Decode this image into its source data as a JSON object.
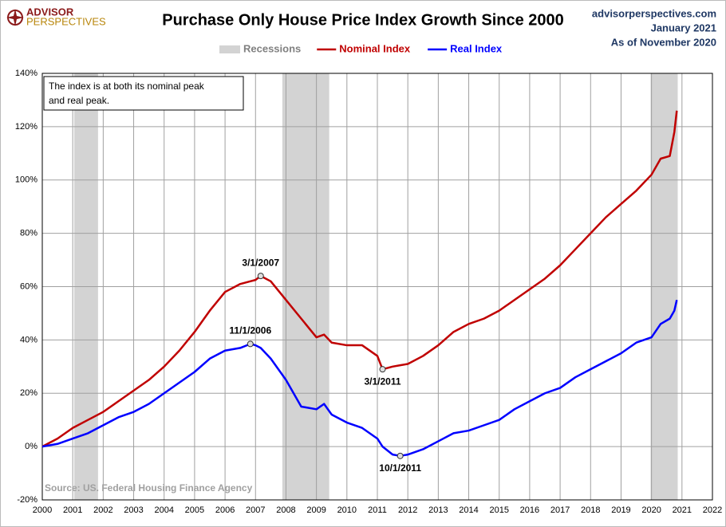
{
  "brand": [
    "ADVISOR",
    "PERSPECTIVES"
  ],
  "site": "advisorperspectives.com",
  "date": "January 2021",
  "as_of": "As of November 2020",
  "chart_data": {
    "type": "line",
    "title": "Purchase Only House Price Index Growth Since 2000",
    "recessions_label": "Recessions",
    "recession_color": "#d3d3d3",
    "recessions": [
      [
        2001.05,
        2001.83
      ],
      [
        2007.88,
        2009.42
      ],
      [
        2019.97,
        2020.86
      ]
    ],
    "x": [
      2000,
      2000.5,
      2001,
      2001.5,
      2002,
      2002.5,
      2003,
      2003.5,
      2004,
      2004.5,
      2005,
      2005.5,
      2006,
      2006.5,
      2006.83,
      2007,
      2007.17,
      2007.5,
      2008,
      2008.5,
      2009,
      2009.25,
      2009.5,
      2010,
      2010.5,
      2011,
      2011.17,
      2011.5,
      2011.75,
      2012,
      2012.5,
      2013,
      2013.5,
      2014,
      2014.5,
      2015,
      2015.5,
      2016,
      2016.5,
      2017,
      2017.5,
      2018,
      2018.5,
      2019,
      2019.5,
      2020,
      2020.3,
      2020.6,
      2020.75,
      2020.83
    ],
    "series": [
      {
        "name": "Nominal Index",
        "color": "#c00000",
        "values": [
          0,
          3,
          7,
          10,
          13,
          17,
          21,
          25,
          30,
          36,
          43,
          51,
          58,
          61,
          62,
          62.5,
          64,
          62,
          55,
          48,
          41,
          42,
          39,
          38,
          38,
          34,
          29,
          30,
          30.5,
          31,
          34,
          38,
          43,
          46,
          48,
          51,
          55,
          59,
          63,
          68,
          74,
          80,
          86,
          91,
          96,
          102,
          108,
          109,
          118,
          126
        ]
      },
      {
        "name": "Real Index",
        "color": "#0000ff",
        "values": [
          0,
          1,
          3,
          5,
          8,
          11,
          13,
          16,
          20,
          24,
          28,
          33,
          36,
          37,
          38.5,
          38,
          37,
          33,
          25,
          15,
          14,
          16,
          12,
          9,
          7,
          3,
          0,
          -3,
          -3.5,
          -3,
          -1,
          2,
          5,
          6,
          8,
          10,
          14,
          17,
          20,
          22,
          26,
          29,
          32,
          35,
          39,
          41,
          46,
          48,
          51,
          55
        ]
      }
    ],
    "annotations": [
      {
        "text": "3/1/2007",
        "x": 2007.17,
        "y": 64,
        "position": "above"
      },
      {
        "text": "11/1/2006",
        "x": 2006.83,
        "y": 38.5,
        "position": "above"
      },
      {
        "text": "3/1/2011",
        "x": 2011.17,
        "y": 29,
        "position": "below"
      },
      {
        "text": "10/1/2011",
        "x": 2011.75,
        "y": -3.5,
        "position": "below"
      }
    ],
    "note": [
      "The index is at both its nominal peak",
      "and real peak."
    ],
    "source": "Source: US. Federal Housing Finance Agency",
    "xlim": [
      2000,
      2022
    ],
    "xticks": [
      2000,
      2001,
      2002,
      2003,
      2004,
      2005,
      2006,
      2007,
      2008,
      2009,
      2010,
      2011,
      2012,
      2013,
      2014,
      2015,
      2016,
      2017,
      2018,
      2019,
      2020,
      2021,
      2022
    ],
    "ylim": [
      -20,
      140
    ],
    "yticks": [
      {
        "value": -20,
        "label": "-20%"
      },
      {
        "value": 0,
        "label": "0%"
      },
      {
        "value": 20,
        "label": "20%"
      },
      {
        "value": 40,
        "label": "40%"
      },
      {
        "value": 60,
        "label": "60%"
      },
      {
        "value": 80,
        "label": "80%"
      },
      {
        "value": 100,
        "label": "100%"
      },
      {
        "value": 120,
        "label": "120%"
      },
      {
        "value": 140,
        "label": "140%"
      }
    ],
    "grid": true
  }
}
